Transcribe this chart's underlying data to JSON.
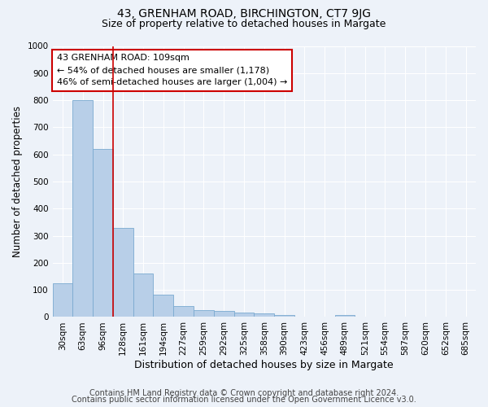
{
  "title": "43, GRENHAM ROAD, BIRCHINGTON, CT7 9JG",
  "subtitle": "Size of property relative to detached houses in Margate",
  "xlabel": "Distribution of detached houses by size in Margate",
  "ylabel": "Number of detached properties",
  "bar_labels": [
    "30sqm",
    "63sqm",
    "96sqm",
    "128sqm",
    "161sqm",
    "194sqm",
    "227sqm",
    "259sqm",
    "292sqm",
    "325sqm",
    "358sqm",
    "390sqm",
    "423sqm",
    "456sqm",
    "489sqm",
    "521sqm",
    "554sqm",
    "587sqm",
    "620sqm",
    "652sqm",
    "685sqm"
  ],
  "bar_values": [
    125,
    800,
    620,
    328,
    162,
    82,
    40,
    25,
    22,
    15,
    14,
    6,
    0,
    0,
    8,
    0,
    0,
    0,
    0,
    0,
    0
  ],
  "bar_color": "#b8cfe8",
  "bar_edge_color": "#7aaad0",
  "annotation_box_text": "43 GRENHAM ROAD: 109sqm\n← 54% of detached houses are smaller (1,178)\n46% of semi-detached houses are larger (1,004) →",
  "annotation_box_color": "#cc0000",
  "ylim": [
    0,
    1000
  ],
  "yticks": [
    0,
    100,
    200,
    300,
    400,
    500,
    600,
    700,
    800,
    900,
    1000
  ],
  "background_color": "#edf2f9",
  "plot_bg_color": "#edf2f9",
  "footer_line1": "Contains HM Land Registry data © Crown copyright and database right 2024.",
  "footer_line2": "Contains public sector information licensed under the Open Government Licence v3.0.",
  "title_fontsize": 10,
  "subtitle_fontsize": 9,
  "xlabel_fontsize": 9,
  "ylabel_fontsize": 8.5,
  "tick_fontsize": 7.5,
  "annotation_fontsize": 8,
  "footer_fontsize": 7
}
